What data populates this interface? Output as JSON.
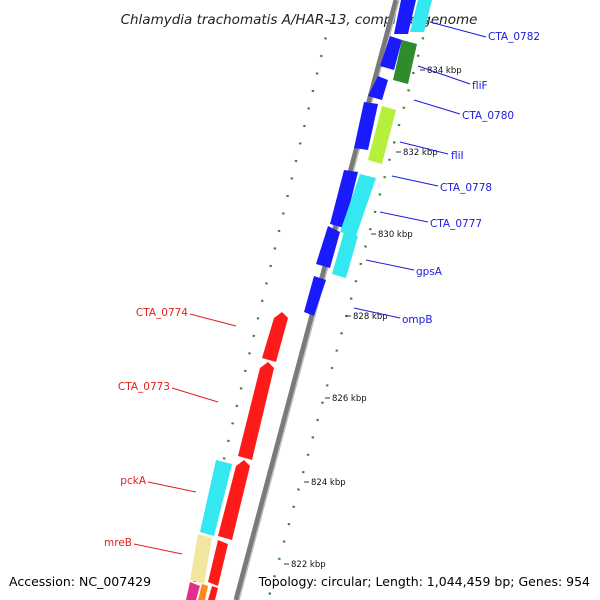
{
  "title": "Chlamydia trachomatis A/HAR-13, complete genome",
  "accession": "Accession: NC_007429",
  "topology": "Topology: circular; Length: 1,044,459 bp; Genes: 954",
  "kbp_markers": [
    "834 kbp",
    "832 kbp",
    "830 kbp",
    "828 kbp",
    "826 kbp",
    "824 kbp",
    "822 kbp"
  ],
  "forward_labels": [
    "CTA_0782",
    "fliF",
    "CTA_0780",
    "fliI",
    "CTA_0778",
    "CTA_0777",
    "gpsA",
    "ompB"
  ],
  "reverse_labels": [
    "CTA_0774",
    "CTA_0773",
    "pckA",
    "mreB"
  ],
  "colors": {
    "forward_label": "#1a1adf",
    "reverse_label": "#e02020",
    "blue": "#1a1aff",
    "red": "#ff1a1a",
    "cyan": "#33e8f0",
    "green": "#2e8b2e",
    "yellow_green": "#b4f03c",
    "khaki": "#f2e6a0",
    "magenta": "#e0308c",
    "gc_dots": "#2e8b2e"
  }
}
